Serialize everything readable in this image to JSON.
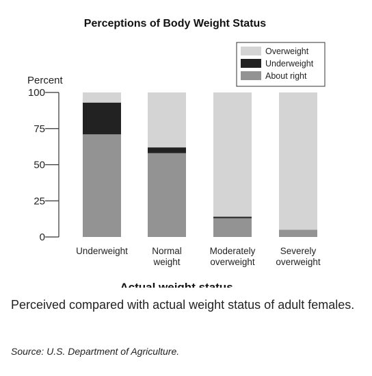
{
  "chart_data": {
    "type": "bar",
    "stacked": true,
    "title": "Perceptions of Body Weight Status",
    "ylabel": "Percent",
    "xlabel": "Actual weight status",
    "ylim": [
      0,
      100
    ],
    "yticks": [
      0,
      25,
      50,
      75,
      100
    ],
    "categories": [
      [
        "Underweight"
      ],
      [
        "Normal",
        "weight"
      ],
      [
        "Moderately",
        "overweight"
      ],
      [
        "Severely",
        "overweight"
      ]
    ],
    "series": [
      {
        "name": "About right",
        "values": [
          71,
          58,
          13,
          5
        ],
        "color": "#939393"
      },
      {
        "name": "Underweight",
        "values": [
          22,
          4,
          1,
          0
        ],
        "color": "#222222"
      },
      {
        "name": "Overweight",
        "values": [
          7,
          38,
          86,
          95
        ],
        "color": "#d4d4d4"
      }
    ],
    "legend": {
      "placement": "top-right",
      "order": [
        "Overweight",
        "Underweight",
        "About right"
      ]
    },
    "grid": false
  },
  "caption": "Perceived compared with actual weight status of adult females.",
  "source": "Source: U.S. Department of Agriculture."
}
